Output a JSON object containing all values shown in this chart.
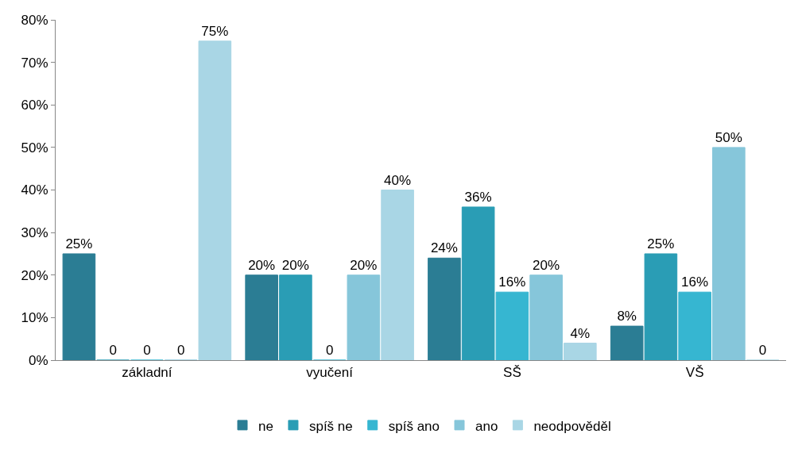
{
  "chart_data": {
    "type": "bar",
    "categories": [
      "základní",
      "vyučení",
      "SŠ",
      "VŠ"
    ],
    "series": [
      {
        "name": "ne",
        "color": "#2b7d94",
        "values": [
          25,
          20,
          24,
          8
        ],
        "value_labels": [
          "25%",
          "20%",
          "24%",
          "8%"
        ]
      },
      {
        "name": "spíš ne",
        "color": "#2a9db5",
        "values": [
          0,
          20,
          36,
          25
        ],
        "value_labels": [
          "0",
          "20%",
          "36%",
          "25%"
        ]
      },
      {
        "name": "spíš ano",
        "color": "#36b6d1",
        "values": [
          0,
          0,
          16,
          16
        ],
        "value_labels": [
          "0",
          "0",
          "16%",
          "16%"
        ]
      },
      {
        "name": "ano",
        "color": "#86c6da",
        "values": [
          0,
          20,
          20,
          50
        ],
        "value_labels": [
          "0",
          "20%",
          "20%",
          "50%"
        ]
      },
      {
        "name": "neodpověděl",
        "color": "#a9d6e5",
        "values": [
          75,
          40,
          4,
          0
        ],
        "value_labels": [
          "75%",
          "40%",
          "4%",
          "0"
        ]
      }
    ],
    "ylim": [
      0,
      80
    ],
    "yticks": [
      {
        "value": 0,
        "label": "0%"
      },
      {
        "value": 10,
        "label": "10%"
      },
      {
        "value": 20,
        "label": "20%"
      },
      {
        "value": 30,
        "label": "30%"
      },
      {
        "value": 40,
        "label": "40%"
      },
      {
        "value": 50,
        "label": "50%"
      },
      {
        "value": 60,
        "label": "60%"
      },
      {
        "value": 70,
        "label": "70%"
      },
      {
        "value": 80,
        "label": "80%"
      }
    ],
    "legend": "bottom"
  }
}
